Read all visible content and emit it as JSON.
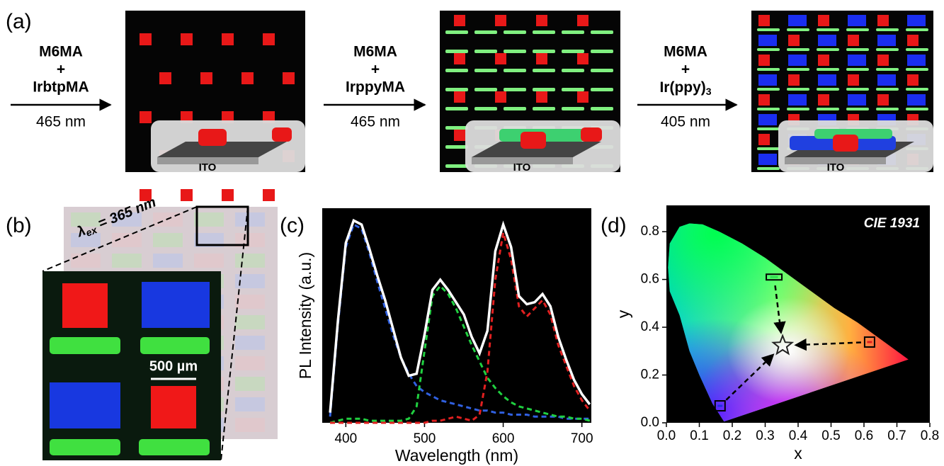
{
  "figure": {
    "panel_labels": [
      "(a)",
      "(b)",
      "(c)",
      "(d)"
    ],
    "steps": [
      {
        "monomer": "M6MA",
        "plus": "+",
        "reagent": "IrbtpMA",
        "wavelength": "465 nm",
        "inset_label": "ITO"
      },
      {
        "monomer": "M6MA",
        "plus": "+",
        "reagent": "IrppyMA",
        "wavelength": "465 nm",
        "inset_label": "ITO"
      },
      {
        "monomer": "M6MA",
        "plus": "+",
        "reagent": "Ir(ppy)",
        "reagent_subscript": "3",
        "wavelength": "405 nm",
        "inset_label": "ITO"
      }
    ],
    "excitation": {
      "symbol": "λ",
      "subscript": "ex",
      "text": " = 365 nm"
    },
    "scale_bar": "500 µm"
  },
  "chart_data": [
    {
      "type": "line",
      "xlabel": "Wavelength (nm)",
      "ylabel": "PL Intensity (a.u.)",
      "xlim": [
        370,
        712
      ],
      "ylim": [
        0,
        1.05
      ],
      "xticks": [
        400,
        500,
        600,
        700
      ],
      "x": [
        380,
        390,
        400,
        410,
        420,
        430,
        440,
        450,
        460,
        470,
        480,
        490,
        500,
        510,
        520,
        530,
        540,
        550,
        560,
        570,
        580,
        590,
        600,
        610,
        620,
        630,
        640,
        650,
        660,
        670,
        680,
        690,
        700,
        710
      ],
      "series": [
        {
          "color": "#3060e0",
          "dash": true,
          "values": [
            0.03,
            0.48,
            0.86,
            0.97,
            0.95,
            0.83,
            0.69,
            0.56,
            0.43,
            0.32,
            0.24,
            0.18,
            0.15,
            0.13,
            0.11,
            0.1,
            0.09,
            0.08,
            0.07,
            0.06,
            0.06,
            0.05,
            0.05,
            0.04,
            0.04,
            0.04,
            0.03,
            0.03,
            0.03,
            0.03,
            0.02,
            0.02,
            0.02,
            0.02
          ]
        },
        {
          "color": "#20d040",
          "dash": true,
          "values": [
            0,
            0.01,
            0.02,
            0.02,
            0.02,
            0.01,
            0.01,
            0.01,
            0.01,
            0.01,
            0.02,
            0.08,
            0.35,
            0.62,
            0.67,
            0.63,
            0.56,
            0.47,
            0.38,
            0.3,
            0.22,
            0.17,
            0.13,
            0.1,
            0.08,
            0.07,
            0.06,
            0.05,
            0.04,
            0.03,
            0.03,
            0.02,
            0.02,
            0.01
          ]
        },
        {
          "color": "#e02020",
          "dash": true,
          "values": [
            0,
            0,
            0,
            0,
            0,
            0,
            0,
            0,
            0,
            0,
            0,
            0,
            0,
            0.01,
            0.01,
            0.02,
            0.03,
            0.02,
            0.01,
            0.04,
            0.25,
            0.7,
            0.93,
            0.8,
            0.57,
            0.52,
            0.56,
            0.6,
            0.53,
            0.38,
            0.28,
            0.18,
            0.11,
            0.06
          ]
        },
        {
          "color": "#ffffff",
          "dash": false,
          "values": [
            0.05,
            0.5,
            0.88,
            0.99,
            0.97,
            0.85,
            0.72,
            0.6,
            0.46,
            0.32,
            0.23,
            0.24,
            0.43,
            0.65,
            0.7,
            0.65,
            0.59,
            0.53,
            0.42,
            0.34,
            0.45,
            0.84,
            0.97,
            0.86,
            0.62,
            0.58,
            0.59,
            0.63,
            0.57,
            0.42,
            0.31,
            0.21,
            0.14,
            0.09
          ]
        }
      ]
    },
    {
      "type": "scatter",
      "annotation": "CIE 1931",
      "xlabel": "x",
      "ylabel": "y",
      "xlim": [
        0,
        0.8
      ],
      "ylim": [
        0,
        0.91
      ],
      "xticks": [
        {
          "value": 0,
          "label": "0.0"
        },
        0.1,
        0.2,
        0.3,
        0.4,
        0.5,
        0.6,
        0.7,
        0.8
      ],
      "yticks": [
        {
          "value": 0,
          "label": "0.0"
        },
        0.2,
        0.4,
        0.6,
        0.8
      ],
      "series": [
        {
          "marker": "bar",
          "color": "#30e050",
          "x": [
            0.327
          ],
          "values": [
            0.61
          ]
        },
        {
          "marker": "square",
          "color": "#e02020",
          "x": [
            0.617
          ],
          "values": [
            0.338
          ]
        },
        {
          "marker": "square",
          "color": "#2030e0",
          "x": [
            0.163
          ],
          "values": [
            0.071
          ]
        },
        {
          "marker": "star",
          "color": "#ffffff",
          "x": [
            0.353
          ],
          "values": [
            0.323
          ]
        }
      ]
    }
  ]
}
